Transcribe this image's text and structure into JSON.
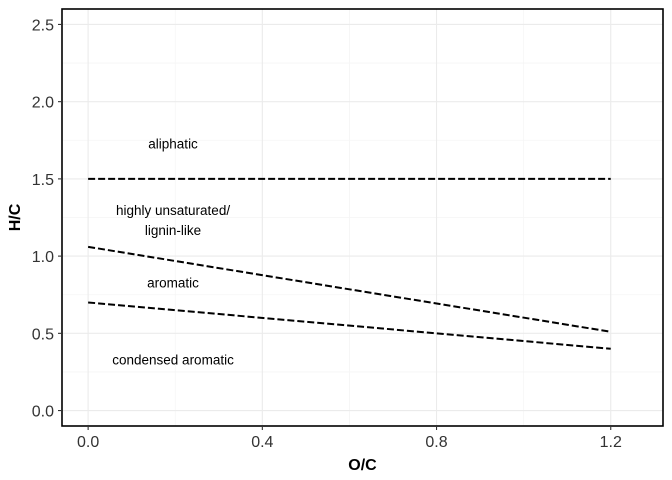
{
  "chart_data": {
    "type": "line",
    "title": "",
    "xlabel": "O/C",
    "ylabel": "H/C",
    "xlim": [
      -0.06,
      1.32
    ],
    "ylim": [
      -0.1,
      2.6
    ],
    "x_ticks": [
      0.0,
      0.4,
      0.8,
      1.2
    ],
    "x_tick_labels": [
      "0.0",
      "0.4",
      "0.8",
      "1.2"
    ],
    "y_ticks": [
      0.0,
      0.5,
      1.0,
      1.5,
      2.0,
      2.5
    ],
    "y_tick_labels": [
      "0.0",
      "0.5",
      "1.0",
      "1.5",
      "2.0",
      "2.5"
    ],
    "grid": true,
    "legend": "none",
    "series": [
      {
        "style": "dashed",
        "x": [
          0.0,
          1.2
        ],
        "y": [
          1.5,
          1.5
        ]
      },
      {
        "style": "dashed",
        "x": [
          0.0,
          1.2
        ],
        "y": [
          1.06,
          0.51
        ]
      },
      {
        "style": "dashed",
        "x": [
          0.0,
          1.2
        ],
        "y": [
          0.7,
          0.4
        ]
      }
    ],
    "annotations": [
      {
        "text": "aliphatic",
        "x": 0.195,
        "y": 1.73
      },
      {
        "text": "highly unsaturated/",
        "x": 0.195,
        "y": 1.3
      },
      {
        "text": "lignin-like",
        "x": 0.195,
        "y": 1.17
      },
      {
        "text": "aromatic",
        "x": 0.195,
        "y": 0.83
      },
      {
        "text": "condensed aromatic",
        "x": 0.195,
        "y": 0.33
      }
    ],
    "colors": {
      "line": "#000000",
      "grid_major": "#ebebeb",
      "grid_minor": "#f5f5f5",
      "panel_border": "#000000"
    }
  }
}
